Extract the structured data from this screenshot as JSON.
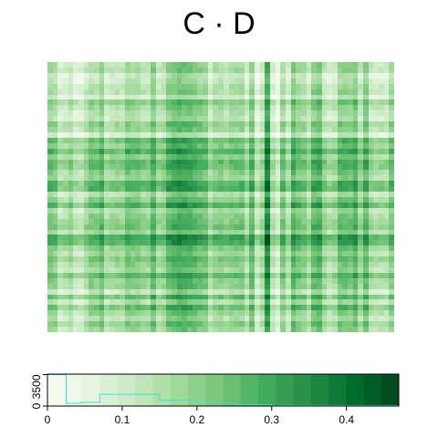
{
  "chart_data": {
    "type": "heatmap",
    "title": "C · D",
    "colormap": [
      "#f7fcf5",
      "#e5f5e0",
      "#c7e9c0",
      "#a1d99b",
      "#74c476",
      "#41ab5d",
      "#238b45",
      "#006d2c",
      "#00441b"
    ],
    "value_range": [
      0,
      0.47
    ],
    "grid": false,
    "legend": "color key with histogram, bottom",
    "color_key": {
      "x_ticks": [
        "0",
        "0.1",
        "0.2",
        "0.3",
        "0.4"
      ],
      "x_tick_values": [
        0,
        0.1,
        0.2,
        0.3,
        0.4
      ],
      "y_ticks": [
        "0",
        "3500"
      ],
      "y_tick_values": [
        0,
        3500
      ],
      "histogram_color": "#40e0d0",
      "histogram": [
        {
          "bin": [
            0,
            0.025
          ],
          "count": 3500
        },
        {
          "bin": [
            0.025,
            0.045
          ],
          "count": 300
        },
        {
          "bin": [
            0.045,
            0.07
          ],
          "count": 400
        },
        {
          "bin": [
            0.07,
            0.12
          ],
          "count": 1300
        },
        {
          "bin": [
            0.12,
            0.15
          ],
          "count": 1300
        },
        {
          "bin": [
            0.15,
            0.2
          ],
          "count": 650
        },
        {
          "bin": [
            0.2,
            0.25
          ],
          "count": 350
        },
        {
          "bin": [
            0.25,
            0.3
          ],
          "count": 150
        },
        {
          "bin": [
            0.3,
            0.47
          ],
          "count": 60
        }
      ]
    },
    "row_blocks": [
      {
        "rows": 14,
        "base": 0.08
      },
      {
        "rows": 8,
        "base": 0.26
      },
      {
        "rows": 10,
        "base": 0.18
      },
      {
        "rows": 1,
        "base": 0.46
      },
      {
        "rows": 9,
        "base": 0.2
      },
      {
        "rows": 8,
        "base": 0.14
      }
    ],
    "col_blocks": [
      {
        "cols": 16,
        "base": 0.12
      },
      {
        "cols": 20,
        "base": 0.2
      },
      {
        "cols": 6,
        "base": 0.12
      },
      {
        "cols": 1,
        "base": 0.42
      },
      {
        "cols": 4,
        "base": 0.05
      },
      {
        "cols": 20,
        "base": 0.18
      }
    ]
  }
}
